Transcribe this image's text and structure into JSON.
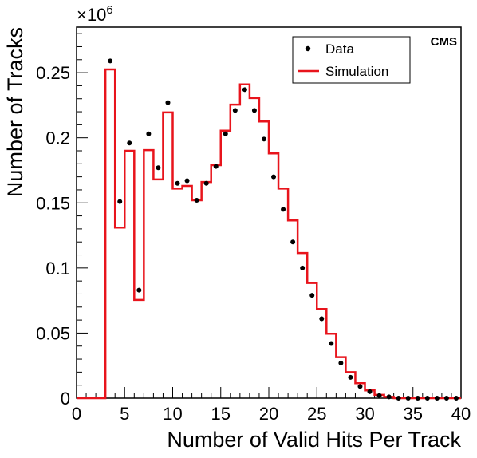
{
  "chart_data": {
    "type": "histogram",
    "xlabel": "Number of Valid Hits Per Track",
    "ylabel": "Number of Tracks",
    "y_multiplier_label": "×10",
    "y_multiplier_exponent": "6",
    "experiment_label": "CMS",
    "xlim": [
      0,
      40
    ],
    "ylim": [
      0,
      0.285
    ],
    "x_ticks": [
      0,
      5,
      10,
      15,
      20,
      25,
      30,
      35,
      40
    ],
    "x_tick_labels": [
      "0",
      "5",
      "10",
      "15",
      "20",
      "25",
      "30",
      "35",
      "40"
    ],
    "y_ticks": [
      0,
      0.05,
      0.1,
      0.15,
      0.2,
      0.25
    ],
    "y_tick_labels": [
      "0",
      "0.05",
      "0.1",
      "0.15",
      "0.2",
      "0.25"
    ],
    "legend": {
      "position": "top-right",
      "entries": [
        {
          "label": "Data",
          "marker": "dot",
          "color": "#000000"
        },
        {
          "label": "Simulation",
          "marker": "line",
          "color": "#e8141c"
        }
      ]
    },
    "bin_edges": [
      0,
      1,
      2,
      3,
      4,
      5,
      6,
      7,
      8,
      9,
      10,
      11,
      12,
      13,
      14,
      15,
      16,
      17,
      18,
      19,
      20,
      21,
      22,
      23,
      24,
      25,
      26,
      27,
      28,
      29,
      30,
      31,
      32,
      33,
      34,
      35,
      36,
      37,
      38,
      39,
      40
    ],
    "series": [
      {
        "name": "Simulation",
        "style": "step",
        "color": "#e8141c",
        "values": [
          0,
          0,
          0,
          0.2525,
          0.131,
          0.19,
          0.0755,
          0.1905,
          0.168,
          0.2195,
          0.161,
          0.163,
          0.152,
          0.166,
          0.179,
          0.2055,
          0.2255,
          0.241,
          0.2305,
          0.2125,
          0.188,
          0.161,
          0.1365,
          0.1115,
          0.0885,
          0.0685,
          0.0495,
          0.0315,
          0.02,
          0.0115,
          0.006,
          0.0025,
          0.001,
          0,
          0,
          0,
          0,
          0,
          0,
          0
        ]
      },
      {
        "name": "Data",
        "style": "points",
        "color": "#000000",
        "values": [
          null,
          null,
          null,
          0.259,
          0.151,
          0.196,
          0.083,
          0.203,
          0.177,
          0.227,
          0.165,
          0.167,
          0.152,
          0.165,
          0.178,
          0.203,
          0.221,
          0.237,
          0.221,
          0.199,
          0.17,
          0.145,
          0.12,
          0.1,
          0.079,
          0.061,
          0.042,
          0.027,
          0.016,
          0.009,
          0.005,
          0.002,
          0.001,
          0,
          0,
          0,
          0,
          0,
          0,
          0
        ]
      }
    ]
  }
}
